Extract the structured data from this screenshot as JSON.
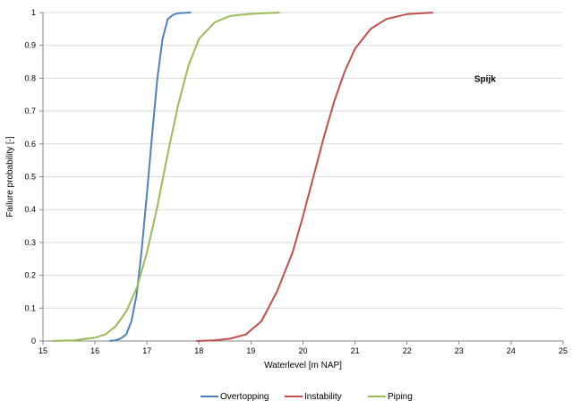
{
  "chart_data": {
    "type": "line",
    "title": "",
    "xlabel": "Waterlevel [m NAP]",
    "ylabel": "Failure probability [-]",
    "xlim": [
      15,
      25
    ],
    "ylim": [
      0,
      1
    ],
    "x_ticks": [
      "15",
      "16",
      "17",
      "18",
      "19",
      "20",
      "21",
      "22",
      "23",
      "24",
      "25"
    ],
    "y_ticks": [
      "0",
      "0.1",
      "0.2",
      "0.3",
      "0.4",
      "0.5",
      "0.6",
      "0.7",
      "0.8",
      "0.9",
      "1"
    ],
    "grid": "horizontal",
    "legend": "bottom",
    "annotation": {
      "text": "Spijk",
      "x": 23.5,
      "y": 0.8
    },
    "series": [
      {
        "name": "Overtopping",
        "color": "#4f81bd",
        "points": [
          [
            16.28,
            0.0
          ],
          [
            16.4,
            0.002
          ],
          [
            16.5,
            0.008
          ],
          [
            16.6,
            0.02
          ],
          [
            16.7,
            0.06
          ],
          [
            16.8,
            0.14
          ],
          [
            16.9,
            0.28
          ],
          [
            17.0,
            0.45
          ],
          [
            17.1,
            0.63
          ],
          [
            17.2,
            0.8
          ],
          [
            17.3,
            0.92
          ],
          [
            17.4,
            0.98
          ],
          [
            17.5,
            0.993
          ],
          [
            17.6,
            0.998
          ],
          [
            17.85,
            1.0
          ]
        ]
      },
      {
        "name": "Instability",
        "color": "#c0504d",
        "points": [
          [
            17.95,
            0.0
          ],
          [
            18.3,
            0.002
          ],
          [
            18.6,
            0.007
          ],
          [
            18.9,
            0.02
          ],
          [
            19.2,
            0.06
          ],
          [
            19.5,
            0.15
          ],
          [
            19.8,
            0.27
          ],
          [
            20.0,
            0.38
          ],
          [
            20.2,
            0.5
          ],
          [
            20.4,
            0.62
          ],
          [
            20.6,
            0.73
          ],
          [
            20.8,
            0.82
          ],
          [
            21.0,
            0.89
          ],
          [
            21.3,
            0.95
          ],
          [
            21.6,
            0.98
          ],
          [
            22.0,
            0.995
          ],
          [
            22.5,
            1.0
          ]
        ]
      },
      {
        "name": "Piping",
        "color": "#9bbb59",
        "points": [
          [
            15.18,
            0.0
          ],
          [
            15.6,
            0.002
          ],
          [
            16.0,
            0.01
          ],
          [
            16.2,
            0.02
          ],
          [
            16.4,
            0.045
          ],
          [
            16.6,
            0.09
          ],
          [
            16.8,
            0.16
          ],
          [
            17.0,
            0.27
          ],
          [
            17.2,
            0.41
          ],
          [
            17.4,
            0.57
          ],
          [
            17.6,
            0.72
          ],
          [
            17.8,
            0.84
          ],
          [
            18.0,
            0.92
          ],
          [
            18.3,
            0.97
          ],
          [
            18.6,
            0.99
          ],
          [
            19.0,
            0.996
          ],
          [
            19.55,
            1.0
          ]
        ]
      }
    ]
  }
}
